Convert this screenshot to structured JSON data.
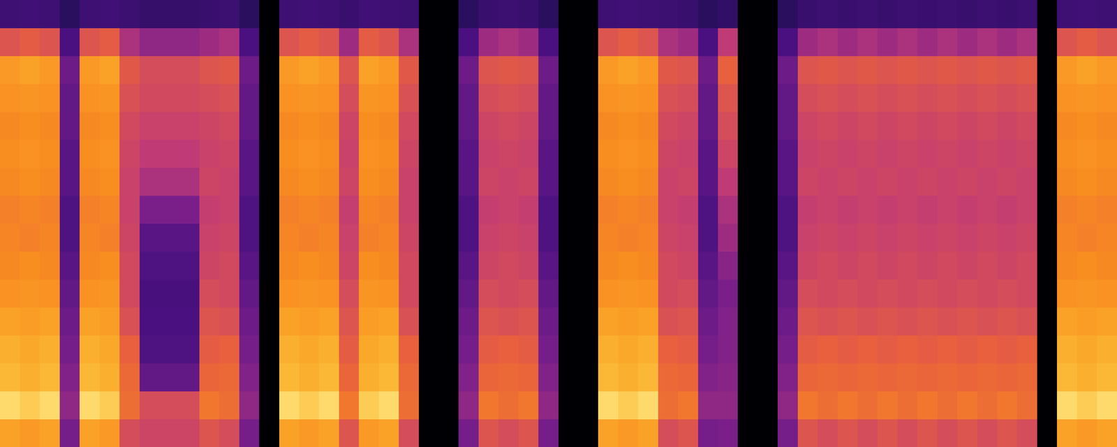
{
  "chart_data": {
    "type": "heatmap",
    "tick_labels": false,
    "zlim": [
      0,
      1
    ],
    "cells": [
      [
        0.8,
        0.93,
        0.86,
        0.84,
        0.8,
        0.76,
        0.74,
        0.73,
        0.72,
        0.74,
        0.75,
        0.74,
        0.76,
        0.78,
        0.62,
        0.3
      ],
      [
        0.78,
        0.9,
        0.84,
        0.82,
        0.79,
        0.77,
        0.75,
        0.72,
        0.73,
        0.75,
        0.76,
        0.75,
        0.77,
        0.8,
        0.64,
        0.31
      ],
      [
        0.8,
        0.93,
        0.86,
        0.84,
        0.8,
        0.76,
        0.74,
        0.73,
        0.72,
        0.74,
        0.75,
        0.74,
        0.76,
        0.78,
        0.62,
        0.3
      ],
      [
        0.44,
        0.48,
        0.46,
        0.44,
        0.42,
        0.4,
        0.38,
        0.36,
        0.36,
        0.38,
        0.38,
        0.4,
        0.4,
        0.42,
        0.35,
        0.22
      ],
      [
        0.8,
        0.93,
        0.86,
        0.84,
        0.8,
        0.76,
        0.74,
        0.73,
        0.72,
        0.74,
        0.75,
        0.74,
        0.76,
        0.78,
        0.62,
        0.3
      ],
      [
        0.78,
        0.9,
        0.84,
        0.82,
        0.79,
        0.77,
        0.75,
        0.72,
        0.73,
        0.75,
        0.76,
        0.75,
        0.77,
        0.8,
        0.64,
        0.31
      ],
      [
        0.6,
        0.68,
        0.67,
        0.65,
        0.61,
        0.59,
        0.59,
        0.58,
        0.57,
        0.57,
        0.58,
        0.59,
        0.61,
        0.63,
        0.52,
        0.29
      ],
      [
        0.58,
        0.6,
        0.4,
        0.36,
        0.35,
        0.34,
        0.36,
        0.38,
        0.45,
        0.52,
        0.55,
        0.57,
        0.59,
        0.6,
        0.48,
        0.27
      ],
      [
        0.58,
        0.6,
        0.4,
        0.36,
        0.35,
        0.34,
        0.36,
        0.38,
        0.45,
        0.52,
        0.55,
        0.57,
        0.59,
        0.6,
        0.48,
        0.27
      ],
      [
        0.58,
        0.6,
        0.4,
        0.36,
        0.35,
        0.34,
        0.36,
        0.38,
        0.45,
        0.52,
        0.55,
        0.57,
        0.59,
        0.6,
        0.48,
        0.27
      ],
      [
        0.62,
        0.7,
        0.66,
        0.64,
        0.62,
        0.6,
        0.58,
        0.57,
        0.56,
        0.58,
        0.57,
        0.58,
        0.6,
        0.62,
        0.5,
        0.28
      ],
      [
        0.6,
        0.68,
        0.67,
        0.65,
        0.61,
        0.59,
        0.59,
        0.58,
        0.57,
        0.57,
        0.58,
        0.59,
        0.61,
        0.63,
        0.52,
        0.29
      ],
      [
        0.44,
        0.48,
        0.46,
        0.44,
        0.42,
        0.4,
        0.38,
        0.36,
        0.36,
        0.38,
        0.38,
        0.4,
        0.4,
        0.42,
        0.35,
        0.22
      ],
      [
        0,
        0,
        0,
        0,
        0,
        0,
        0,
        0,
        0,
        0,
        0,
        0,
        0,
        0,
        0,
        0
      ],
      [
        0.8,
        0.93,
        0.86,
        0.84,
        0.8,
        0.76,
        0.74,
        0.73,
        0.72,
        0.74,
        0.75,
        0.74,
        0.76,
        0.78,
        0.62,
        0.3
      ],
      [
        0.78,
        0.9,
        0.84,
        0.82,
        0.79,
        0.77,
        0.75,
        0.72,
        0.73,
        0.75,
        0.76,
        0.75,
        0.77,
        0.8,
        0.64,
        0.31
      ],
      [
        0.8,
        0.93,
        0.86,
        0.84,
        0.8,
        0.76,
        0.74,
        0.73,
        0.72,
        0.74,
        0.75,
        0.74,
        0.76,
        0.78,
        0.62,
        0.3
      ],
      [
        0.62,
        0.7,
        0.66,
        0.64,
        0.62,
        0.6,
        0.58,
        0.57,
        0.56,
        0.58,
        0.57,
        0.58,
        0.6,
        0.62,
        0.5,
        0.28
      ],
      [
        0.78,
        0.9,
        0.84,
        0.82,
        0.79,
        0.77,
        0.75,
        0.72,
        0.73,
        0.75,
        0.76,
        0.75,
        0.77,
        0.8,
        0.64,
        0.31
      ],
      [
        0.8,
        0.93,
        0.86,
        0.84,
        0.8,
        0.76,
        0.74,
        0.73,
        0.72,
        0.74,
        0.75,
        0.74,
        0.76,
        0.78,
        0.62,
        0.3
      ],
      [
        0.6,
        0.68,
        0.67,
        0.65,
        0.61,
        0.59,
        0.59,
        0.58,
        0.57,
        0.57,
        0.58,
        0.59,
        0.61,
        0.63,
        0.52,
        0.29
      ],
      [
        0,
        0,
        0,
        0,
        0,
        0,
        0,
        0,
        0,
        0,
        0,
        0,
        0,
        0,
        0,
        0
      ],
      [
        0,
        0,
        0,
        0,
        0,
        0,
        0,
        0,
        0,
        0,
        0,
        0,
        0,
        0,
        0,
        0
      ],
      [
        0.44,
        0.48,
        0.46,
        0.44,
        0.42,
        0.4,
        0.38,
        0.36,
        0.36,
        0.38,
        0.38,
        0.4,
        0.4,
        0.42,
        0.35,
        0.22
      ],
      [
        0.62,
        0.7,
        0.66,
        0.64,
        0.62,
        0.6,
        0.58,
        0.57,
        0.56,
        0.58,
        0.57,
        0.58,
        0.6,
        0.62,
        0.5,
        0.28
      ],
      [
        0.6,
        0.68,
        0.67,
        0.65,
        0.61,
        0.59,
        0.59,
        0.58,
        0.57,
        0.57,
        0.58,
        0.59,
        0.61,
        0.63,
        0.52,
        0.29
      ],
      [
        0.62,
        0.7,
        0.66,
        0.64,
        0.62,
        0.6,
        0.58,
        0.57,
        0.56,
        0.58,
        0.57,
        0.58,
        0.6,
        0.62,
        0.5,
        0.28
      ],
      [
        0.44,
        0.48,
        0.46,
        0.44,
        0.42,
        0.4,
        0.38,
        0.36,
        0.36,
        0.38,
        0.38,
        0.4,
        0.4,
        0.42,
        0.35,
        0.22
      ],
      [
        0,
        0,
        0,
        0,
        0,
        0,
        0,
        0,
        0,
        0,
        0,
        0,
        0,
        0,
        0,
        0
      ],
      [
        0,
        0,
        0,
        0,
        0,
        0,
        0,
        0,
        0,
        0,
        0,
        0,
        0,
        0,
        0,
        0
      ],
      [
        0.8,
        0.93,
        0.86,
        0.84,
        0.8,
        0.76,
        0.74,
        0.73,
        0.72,
        0.74,
        0.75,
        0.74,
        0.76,
        0.78,
        0.62,
        0.3
      ],
      [
        0.78,
        0.9,
        0.84,
        0.82,
        0.79,
        0.77,
        0.75,
        0.72,
        0.73,
        0.75,
        0.76,
        0.75,
        0.77,
        0.8,
        0.64,
        0.31
      ],
      [
        0.8,
        0.93,
        0.86,
        0.84,
        0.8,
        0.76,
        0.74,
        0.73,
        0.72,
        0.74,
        0.75,
        0.74,
        0.76,
        0.78,
        0.62,
        0.3
      ],
      [
        0.6,
        0.68,
        0.67,
        0.65,
        0.61,
        0.59,
        0.59,
        0.58,
        0.57,
        0.57,
        0.58,
        0.59,
        0.61,
        0.63,
        0.52,
        0.29
      ],
      [
        0.62,
        0.7,
        0.66,
        0.64,
        0.62,
        0.6,
        0.58,
        0.57,
        0.56,
        0.58,
        0.57,
        0.58,
        0.6,
        0.62,
        0.5,
        0.28
      ],
      [
        0.44,
        0.48,
        0.46,
        0.44,
        0.42,
        0.4,
        0.38,
        0.36,
        0.36,
        0.38,
        0.38,
        0.4,
        0.4,
        0.42,
        0.35,
        0.22
      ],
      [
        0.45,
        0.48,
        0.47,
        0.46,
        0.46,
        0.45,
        0.47,
        0.5,
        0.52,
        0.55,
        0.58,
        0.6,
        0.62,
        0.65,
        0.55,
        0.25
      ],
      [
        0,
        0,
        0,
        0,
        0,
        0,
        0,
        0,
        0,
        0,
        0,
        0,
        0,
        0,
        0,
        0
      ],
      [
        0,
        0,
        0,
        0,
        0,
        0,
        0,
        0,
        0,
        0,
        0,
        0,
        0,
        0,
        0,
        0
      ],
      [
        0.44,
        0.48,
        0.46,
        0.44,
        0.42,
        0.4,
        0.38,
        0.36,
        0.36,
        0.38,
        0.38,
        0.4,
        0.4,
        0.42,
        0.35,
        0.22
      ],
      [
        0.62,
        0.7,
        0.66,
        0.64,
        0.62,
        0.6,
        0.58,
        0.57,
        0.56,
        0.58,
        0.57,
        0.58,
        0.6,
        0.62,
        0.5,
        0.28
      ],
      [
        0.6,
        0.68,
        0.67,
        0.65,
        0.61,
        0.59,
        0.59,
        0.58,
        0.57,
        0.57,
        0.58,
        0.59,
        0.61,
        0.63,
        0.52,
        0.29
      ],
      [
        0.62,
        0.7,
        0.66,
        0.64,
        0.62,
        0.6,
        0.58,
        0.57,
        0.56,
        0.58,
        0.57,
        0.58,
        0.6,
        0.62,
        0.5,
        0.28
      ],
      [
        0.6,
        0.68,
        0.67,
        0.65,
        0.61,
        0.59,
        0.59,
        0.58,
        0.57,
        0.57,
        0.58,
        0.59,
        0.61,
        0.63,
        0.52,
        0.29
      ],
      [
        0.62,
        0.7,
        0.66,
        0.64,
        0.62,
        0.6,
        0.58,
        0.57,
        0.56,
        0.58,
        0.57,
        0.58,
        0.6,
        0.62,
        0.5,
        0.28
      ],
      [
        0.6,
        0.68,
        0.67,
        0.65,
        0.61,
        0.59,
        0.59,
        0.58,
        0.57,
        0.57,
        0.58,
        0.59,
        0.61,
        0.63,
        0.52,
        0.29
      ],
      [
        0.62,
        0.7,
        0.66,
        0.64,
        0.62,
        0.6,
        0.58,
        0.57,
        0.56,
        0.58,
        0.57,
        0.58,
        0.6,
        0.62,
        0.5,
        0.28
      ],
      [
        0.6,
        0.68,
        0.67,
        0.65,
        0.61,
        0.59,
        0.59,
        0.58,
        0.57,
        0.57,
        0.58,
        0.59,
        0.61,
        0.63,
        0.52,
        0.29
      ],
      [
        0.62,
        0.7,
        0.66,
        0.64,
        0.62,
        0.6,
        0.58,
        0.57,
        0.56,
        0.58,
        0.57,
        0.58,
        0.6,
        0.62,
        0.5,
        0.28
      ],
      [
        0.6,
        0.68,
        0.67,
        0.65,
        0.61,
        0.59,
        0.59,
        0.58,
        0.57,
        0.57,
        0.58,
        0.59,
        0.61,
        0.63,
        0.52,
        0.29
      ],
      [
        0.62,
        0.7,
        0.66,
        0.64,
        0.62,
        0.6,
        0.58,
        0.57,
        0.56,
        0.58,
        0.57,
        0.58,
        0.6,
        0.62,
        0.5,
        0.28
      ],
      [
        0.6,
        0.68,
        0.67,
        0.65,
        0.61,
        0.59,
        0.59,
        0.58,
        0.57,
        0.57,
        0.58,
        0.59,
        0.61,
        0.63,
        0.52,
        0.29
      ],
      [
        0,
        0,
        0,
        0,
        0,
        0,
        0,
        0,
        0,
        0,
        0,
        0,
        0,
        0,
        0,
        0
      ],
      [
        0.8,
        0.93,
        0.86,
        0.84,
        0.8,
        0.76,
        0.74,
        0.73,
        0.72,
        0.74,
        0.75,
        0.74,
        0.76,
        0.78,
        0.62,
        0.3
      ],
      [
        0.78,
        0.9,
        0.84,
        0.82,
        0.79,
        0.77,
        0.75,
        0.72,
        0.73,
        0.75,
        0.76,
        0.75,
        0.77,
        0.8,
        0.64,
        0.31
      ],
      [
        0.8,
        0.93,
        0.86,
        0.84,
        0.8,
        0.76,
        0.74,
        0.73,
        0.72,
        0.74,
        0.75,
        0.74,
        0.76,
        0.78,
        0.62,
        0.3
      ]
    ]
  }
}
